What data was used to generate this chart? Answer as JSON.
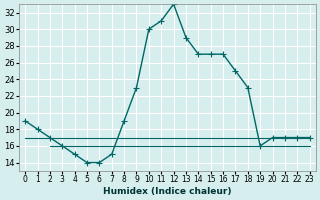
{
  "xlabel": "Humidex (Indice chaleur)",
  "ylabel": "",
  "bg_color": "#d6eeee",
  "grid_color": "#ffffff",
  "line_color": "#006666",
  "xlim": [
    -0.5,
    23.5
  ],
  "ylim": [
    13,
    33
  ],
  "yticks": [
    14,
    16,
    18,
    20,
    22,
    24,
    26,
    28,
    30,
    32
  ],
  "xtick_labels": [
    "0",
    "1",
    "2",
    "3",
    "4",
    "5",
    "6",
    "7",
    "8",
    "9",
    "10",
    "11",
    "12",
    "13",
    "14",
    "15",
    "16",
    "17",
    "18",
    "19",
    "20",
    "21",
    "22",
    "23"
  ],
  "series1_x": [
    0,
    1,
    2,
    3,
    4,
    5,
    6,
    7,
    8,
    9,
    10,
    11,
    12,
    13,
    14,
    15,
    16,
    17,
    18,
    19,
    20,
    21,
    22,
    23
  ],
  "series1_y": [
    19,
    18,
    17,
    16,
    15,
    14,
    14,
    15,
    19,
    23,
    30,
    31,
    33,
    29,
    27,
    27,
    27,
    25,
    23,
    16,
    17,
    17,
    17,
    17
  ],
  "series2_x": [
    0,
    1,
    2,
    3,
    4,
    5,
    6,
    7,
    8,
    9,
    10,
    11,
    12,
    13,
    14,
    15,
    16,
    17,
    18,
    19,
    20,
    21,
    22,
    23
  ],
  "series2_y": [
    17,
    17,
    17,
    17,
    17,
    17,
    17,
    17,
    17,
    17,
    17,
    17,
    17,
    17,
    17,
    17,
    17,
    17,
    17,
    17,
    17,
    17,
    17,
    17
  ],
  "series3_x": [
    2,
    3,
    4,
    5,
    6,
    7,
    8,
    9,
    10,
    11,
    12,
    13,
    14,
    15,
    16,
    17,
    18,
    19,
    20,
    21,
    22,
    23
  ],
  "series3_y": [
    16,
    16,
    16,
    16,
    16,
    16,
    16,
    16,
    16,
    16,
    16,
    16,
    16,
    16,
    16,
    16,
    16,
    16,
    16,
    16,
    16,
    16
  ]
}
